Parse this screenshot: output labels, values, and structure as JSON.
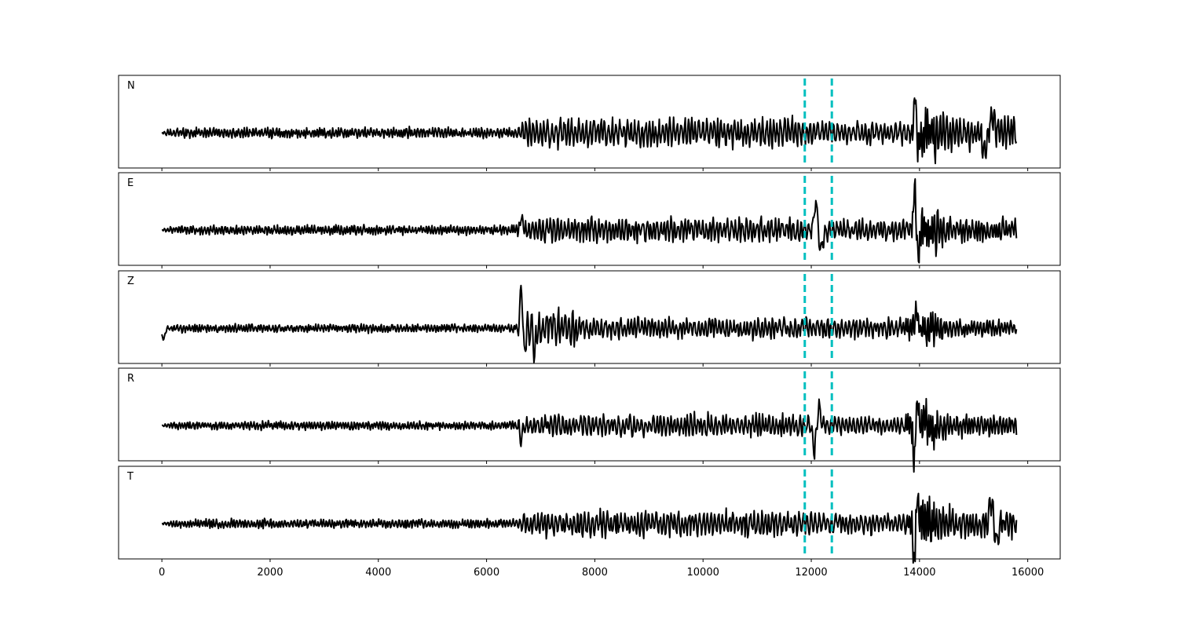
{
  "chart_data": {
    "type": "line",
    "title": "",
    "xlabel": "",
    "ylabel": "",
    "xlim": [
      -800,
      16600
    ],
    "x_ticks": [
      0,
      2000,
      4000,
      6000,
      8000,
      10000,
      12000,
      14000,
      16000
    ],
    "x_tick_labels": [
      "0",
      "2000",
      "4000",
      "6000",
      "8000",
      "10000",
      "12000",
      "14000",
      "16000"
    ],
    "grid": false,
    "pick_color": "#00bfbf",
    "trace_color": "#000000",
    "picks": [
      11880,
      12380
    ],
    "samples": 15800,
    "panels": [
      {
        "label": "N",
        "segments": [
          {
            "start": 0,
            "end": 6550,
            "amp": 0.1,
            "period": 55
          },
          {
            "start": 6550,
            "end": 11850,
            "amp": 0.28,
            "period": 70
          },
          {
            "start": 11850,
            "end": 13850,
            "amp": 0.22,
            "period": 75
          },
          {
            "start": 13850,
            "end": 14300,
            "amp": 0.55,
            "period": 45
          },
          {
            "start": 14300,
            "end": 15800,
            "amp": 0.3,
            "period": 65
          }
        ],
        "events": [
          {
            "x": 13920,
            "amp": 0.9,
            "width": 30
          },
          {
            "x": 13960,
            "amp": -0.5,
            "width": 25
          },
          {
            "x": 15200,
            "amp": -0.4,
            "width": 60
          },
          {
            "x": 15350,
            "amp": 0.35,
            "width": 60
          }
        ]
      },
      {
        "label": "E",
        "segments": [
          {
            "start": 0,
            "end": 6550,
            "amp": 0.09,
            "period": 55
          },
          {
            "start": 6550,
            "end": 11850,
            "amp": 0.24,
            "period": 70
          },
          {
            "start": 11850,
            "end": 13850,
            "amp": 0.2,
            "period": 75
          },
          {
            "start": 13850,
            "end": 14300,
            "amp": 0.5,
            "period": 45
          },
          {
            "start": 14300,
            "end": 15800,
            "amp": 0.22,
            "period": 60
          }
        ],
        "events": [
          {
            "x": 12080,
            "amp": 0.65,
            "width": 40
          },
          {
            "x": 12180,
            "amp": -0.5,
            "width": 40
          },
          {
            "x": 13910,
            "amp": 0.95,
            "width": 28
          },
          {
            "x": 13980,
            "amp": -0.6,
            "width": 28
          },
          {
            "x": 6640,
            "amp": 0.3,
            "width": 30
          }
        ]
      },
      {
        "label": "Z",
        "segments": [
          {
            "start": 0,
            "end": 6550,
            "amp": 0.08,
            "period": 55
          },
          {
            "start": 6550,
            "end": 7600,
            "amp": 0.35,
            "period": 70
          },
          {
            "start": 7600,
            "end": 13700,
            "amp": 0.2,
            "period": 70
          },
          {
            "start": 13700,
            "end": 14300,
            "amp": 0.35,
            "period": 50
          },
          {
            "start": 14300,
            "end": 15800,
            "amp": 0.15,
            "period": 60
          }
        ],
        "events": [
          {
            "x": 6640,
            "amp": 1.05,
            "width": 25
          },
          {
            "x": 6700,
            "amp": -0.55,
            "width": 25
          },
          {
            "x": 6890,
            "amp": -0.6,
            "width": 30
          },
          {
            "x": 30,
            "amp": -0.25,
            "width": 40
          },
          {
            "x": 13950,
            "amp": 0.45,
            "width": 30
          }
        ]
      },
      {
        "label": "R",
        "segments": [
          {
            "start": 0,
            "end": 6550,
            "amp": 0.08,
            "period": 55
          },
          {
            "start": 6550,
            "end": 11850,
            "amp": 0.22,
            "period": 70
          },
          {
            "start": 11850,
            "end": 13750,
            "amp": 0.18,
            "period": 75
          },
          {
            "start": 13750,
            "end": 14300,
            "amp": 0.5,
            "period": 45
          },
          {
            "start": 14300,
            "end": 15800,
            "amp": 0.2,
            "period": 60
          }
        ],
        "events": [
          {
            "x": 12050,
            "amp": -0.6,
            "width": 35
          },
          {
            "x": 12150,
            "amp": 0.4,
            "width": 35
          },
          {
            "x": 13900,
            "amp": -0.95,
            "width": 25
          },
          {
            "x": 13960,
            "amp": 0.65,
            "width": 25
          },
          {
            "x": 6640,
            "amp": -0.35,
            "width": 30
          }
        ]
      },
      {
        "label": "T",
        "segments": [
          {
            "start": 0,
            "end": 6550,
            "amp": 0.09,
            "period": 55
          },
          {
            "start": 6550,
            "end": 11850,
            "amp": 0.25,
            "period": 70
          },
          {
            "start": 11850,
            "end": 13800,
            "amp": 0.2,
            "period": 75
          },
          {
            "start": 13800,
            "end": 14300,
            "amp": 0.55,
            "period": 45
          },
          {
            "start": 14300,
            "end": 15800,
            "amp": 0.28,
            "period": 65
          }
        ],
        "events": [
          {
            "x": 13900,
            "amp": -0.95,
            "width": 25
          },
          {
            "x": 13960,
            "amp": 0.7,
            "width": 25
          },
          {
            "x": 15320,
            "amp": 0.55,
            "width": 45
          },
          {
            "x": 15420,
            "amp": -0.4,
            "width": 50
          }
        ]
      }
    ]
  }
}
